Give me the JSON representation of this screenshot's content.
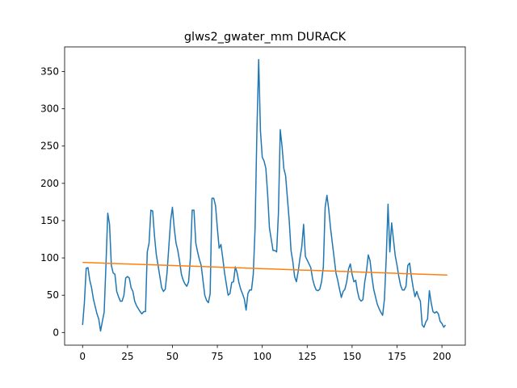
{
  "chart_data": {
    "type": "line",
    "title": "glws2_gwater_mm DURACK",
    "xlabel": "",
    "ylabel": "",
    "xlim": [
      -10,
      213
    ],
    "ylim": [
      -17,
      383
    ],
    "grid": false,
    "x_ticks": [
      0,
      25,
      50,
      75,
      100,
      125,
      150,
      175,
      200
    ],
    "y_ticks": [
      0,
      50,
      100,
      150,
      200,
      250,
      300,
      350
    ],
    "series": [
      {
        "color": "#1f77b4",
        "x_start": 0,
        "values": [
          10,
          40,
          86,
          87,
          70,
          60,
          45,
          35,
          25,
          18,
          2,
          15,
          27,
          90,
          160,
          145,
          90,
          80,
          78,
          55,
          48,
          42,
          42,
          50,
          73,
          75,
          73,
          60,
          55,
          42,
          36,
          32,
          28,
          25,
          28,
          28,
          108,
          120,
          164,
          163,
          130,
          105,
          90,
          75,
          60,
          55,
          58,
          80,
          115,
          150,
          168,
          140,
          120,
          110,
          95,
          78,
          70,
          65,
          62,
          68,
          100,
          164,
          164,
          120,
          108,
          98,
          90,
          70,
          50,
          43,
          40,
          52,
          180,
          180,
          170,
          140,
          113,
          118,
          100,
          80,
          65,
          50,
          52,
          67,
          68,
          88,
          80,
          67,
          58,
          52,
          45,
          30,
          52,
          57,
          57,
          78,
          140,
          268,
          366,
          270,
          235,
          230,
          220,
          185,
          140,
          125,
          110,
          110,
          108,
          160,
          272,
          250,
          220,
          210,
          180,
          150,
          110,
          95,
          75,
          68,
          82,
          100,
          115,
          145,
          102,
          97,
          92,
          87,
          72,
          63,
          57,
          56,
          58,
          68,
          88,
          168,
          184,
          165,
          140,
          120,
          100,
          80,
          70,
          58,
          47,
          55,
          58,
          68,
          85,
          92,
          78,
          68,
          70,
          55,
          45,
          42,
          44,
          67,
          82,
          104,
          96,
          75,
          58,
          48,
          38,
          32,
          27,
          23,
          45,
          100,
          172,
          108,
          147,
          125,
          103,
          90,
          75,
          63,
          57,
          57,
          62,
          90,
          93,
          75,
          60,
          48,
          55,
          47,
          42,
          10,
          7,
          14,
          18,
          56,
          40,
          28,
          26,
          28,
          25,
          15,
          12,
          7,
          10
        ]
      },
      {
        "color": "#ff7f0e",
        "x": [
          0,
          203
        ],
        "values": [
          94,
          77
        ]
      }
    ]
  }
}
